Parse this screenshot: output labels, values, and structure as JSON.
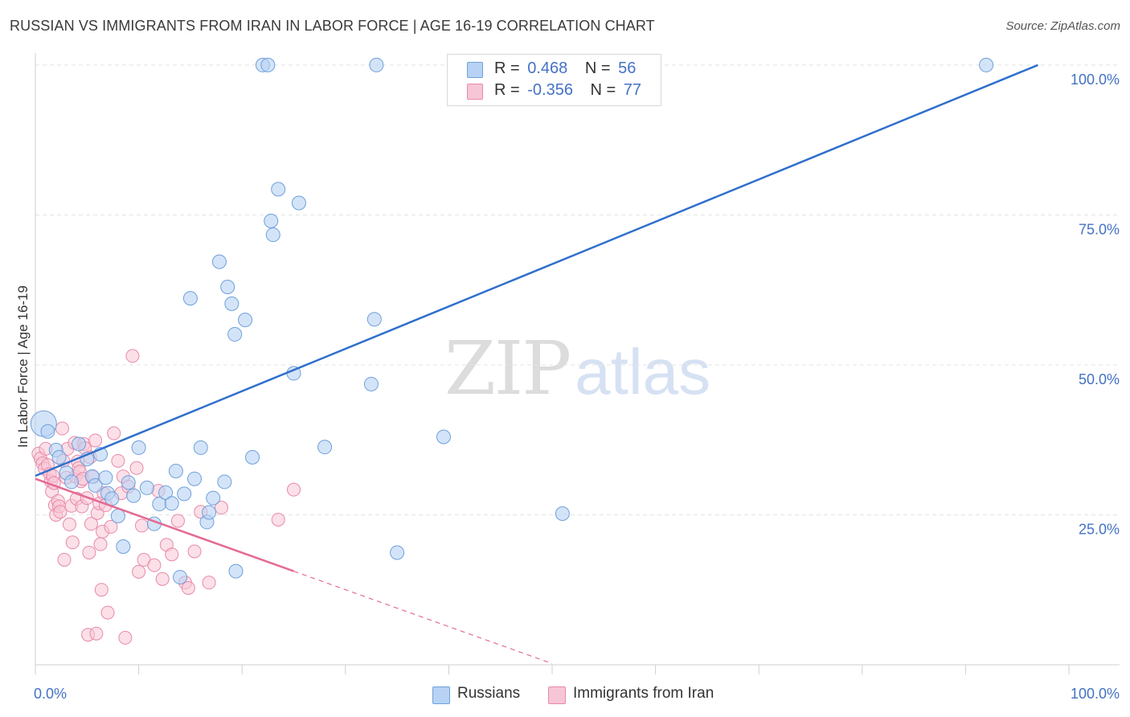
{
  "title": "RUSSIAN VS IMMIGRANTS FROM IRAN IN LABOR FORCE | AGE 16-19 CORRELATION CHART",
  "source": "Source: ZipAtlas.com",
  "watermark": {
    "zip": "ZIP",
    "atlas": "atlas"
  },
  "legend": {
    "russians": {
      "r_label": "R =",
      "r_value": "0.468",
      "n_label": "N =",
      "n_value": "56"
    },
    "iran": {
      "r_label": "R =",
      "r_value": "-0.356",
      "n_label": "N =",
      "n_value": "77"
    }
  },
  "bottom_legend": {
    "russians": "Russians",
    "iran": "Immigrants from Iran"
  },
  "colors": {
    "russians_fill": "#b7d2f4",
    "russians_stroke": "#6fa0db",
    "russians_line": "#2f6fcc",
    "iran_fill": "#f7c6d6",
    "iran_stroke": "#e889a8",
    "iran_line": "#e46b94",
    "axis_label": "#4472c4",
    "grid": "#e4e4e4"
  },
  "chart_data": {
    "type": "scatter",
    "title": "RUSSIAN VS IMMIGRANTS FROM IRAN IN LABOR FORCE | AGE 16-19 CORRELATION CHART",
    "xlabel": "",
    "ylabel": "In Labor Force | Age 16-19",
    "xlim": [
      0,
      100
    ],
    "ylim": [
      0,
      102
    ],
    "x_tick_labels": [
      "0.0%",
      "100.0%"
    ],
    "y_ticks": [
      25,
      50,
      75,
      100
    ],
    "y_tick_labels": [
      "25.0%",
      "50.0%",
      "75.0%",
      "100.0%"
    ],
    "grid": true,
    "series": [
      {
        "name": "Russians",
        "points": [
          [
            0.8,
            40.2
          ],
          [
            1.2,
            38.9
          ],
          [
            2.0,
            35.8
          ],
          [
            2.3,
            34.6
          ],
          [
            3.0,
            32.0
          ],
          [
            3.5,
            30.5
          ],
          [
            4.2,
            36.8
          ],
          [
            5.0,
            34.3
          ],
          [
            5.5,
            31.4
          ],
          [
            5.8,
            29.9
          ],
          [
            6.3,
            35.1
          ],
          [
            6.8,
            31.2
          ],
          [
            7.0,
            28.6
          ],
          [
            7.4,
            27.7
          ],
          [
            8.0,
            24.8
          ],
          [
            8.5,
            19.7
          ],
          [
            9.0,
            30.4
          ],
          [
            9.5,
            28.2
          ],
          [
            10.0,
            36.2
          ],
          [
            10.8,
            29.5
          ],
          [
            11.5,
            23.5
          ],
          [
            12.0,
            26.8
          ],
          [
            12.6,
            28.7
          ],
          [
            13.2,
            26.9
          ],
          [
            13.6,
            32.3
          ],
          [
            14.0,
            14.6
          ],
          [
            14.4,
            28.5
          ],
          [
            15.0,
            61.1
          ],
          [
            15.4,
            31.0
          ],
          [
            16.0,
            36.2
          ],
          [
            16.6,
            23.8
          ],
          [
            16.8,
            25.4
          ],
          [
            17.2,
            27.8
          ],
          [
            17.8,
            67.2
          ],
          [
            18.3,
            30.5
          ],
          [
            18.6,
            63.0
          ],
          [
            19.0,
            60.2
          ],
          [
            19.3,
            55.1
          ],
          [
            19.4,
            15.6
          ],
          [
            20.3,
            57.5
          ],
          [
            21.0,
            34.6
          ],
          [
            22.0,
            100.0
          ],
          [
            22.5,
            100.0
          ],
          [
            22.8,
            74.0
          ],
          [
            23.0,
            71.7
          ],
          [
            23.5,
            79.3
          ],
          [
            25.0,
            48.6
          ],
          [
            25.5,
            77.0
          ],
          [
            28.0,
            36.3
          ],
          [
            32.5,
            46.8
          ],
          [
            32.8,
            57.6
          ],
          [
            33.0,
            100.0
          ],
          [
            35.0,
            18.7
          ],
          [
            39.5,
            38.0
          ],
          [
            51.0,
            25.2
          ],
          [
            92.0,
            100.0
          ]
        ],
        "trend": {
          "x": [
            0,
            97
          ],
          "y": [
            31.5,
            100.0
          ],
          "style": "solid"
        }
      },
      {
        "name": "Immigrants from Iran",
        "points": [
          [
            0.3,
            35.2
          ],
          [
            0.5,
            34.4
          ],
          [
            0.7,
            33.6
          ],
          [
            0.9,
            32.7
          ],
          [
            1.0,
            36.0
          ],
          [
            1.2,
            33.3
          ],
          [
            1.4,
            31.8
          ],
          [
            1.5,
            30.6
          ],
          [
            1.6,
            28.9
          ],
          [
            1.7,
            31.5
          ],
          [
            1.8,
            30.3
          ],
          [
            1.9,
            26.6
          ],
          [
            2.0,
            25.0
          ],
          [
            2.2,
            27.3
          ],
          [
            2.3,
            26.4
          ],
          [
            2.4,
            25.5
          ],
          [
            2.6,
            39.4
          ],
          [
            2.7,
            34.0
          ],
          [
            2.8,
            17.5
          ],
          [
            3.0,
            31.2
          ],
          [
            3.1,
            36.0
          ],
          [
            3.3,
            23.4
          ],
          [
            3.5,
            26.5
          ],
          [
            3.6,
            20.4
          ],
          [
            3.8,
            37.0
          ],
          [
            3.9,
            31.4
          ],
          [
            4.0,
            27.7
          ],
          [
            4.1,
            33.9
          ],
          [
            4.2,
            32.8
          ],
          [
            4.3,
            32.2
          ],
          [
            4.4,
            30.6
          ],
          [
            4.5,
            26.4
          ],
          [
            4.6,
            31.0
          ],
          [
            4.7,
            36.8
          ],
          [
            4.8,
            36.1
          ],
          [
            5.0,
            27.8
          ],
          [
            5.1,
            5.0
          ],
          [
            5.2,
            18.7
          ],
          [
            5.3,
            34.6
          ],
          [
            5.4,
            23.5
          ],
          [
            5.6,
            31.3
          ],
          [
            5.8,
            37.4
          ],
          [
            5.9,
            5.2
          ],
          [
            6.0,
            25.3
          ],
          [
            6.2,
            26.9
          ],
          [
            6.3,
            20.1
          ],
          [
            6.4,
            12.5
          ],
          [
            6.5,
            22.2
          ],
          [
            6.6,
            28.6
          ],
          [
            6.8,
            26.6
          ],
          [
            7.0,
            8.7
          ],
          [
            7.3,
            23.0
          ],
          [
            7.6,
            38.6
          ],
          [
            8.0,
            34.0
          ],
          [
            8.3,
            28.6
          ],
          [
            8.5,
            31.4
          ],
          [
            8.7,
            4.5
          ],
          [
            9.0,
            29.7
          ],
          [
            9.4,
            51.5
          ],
          [
            9.8,
            32.8
          ],
          [
            10.0,
            15.5
          ],
          [
            10.3,
            23.2
          ],
          [
            10.5,
            17.5
          ],
          [
            11.5,
            16.6
          ],
          [
            11.9,
            29.0
          ],
          [
            12.3,
            14.3
          ],
          [
            12.7,
            20.0
          ],
          [
            13.2,
            18.4
          ],
          [
            13.8,
            24.0
          ],
          [
            14.5,
            13.7
          ],
          [
            14.8,
            12.8
          ],
          [
            15.4,
            18.9
          ],
          [
            16.0,
            25.5
          ],
          [
            16.8,
            13.7
          ],
          [
            18.0,
            26.2
          ],
          [
            23.5,
            24.2
          ],
          [
            25.0,
            29.2
          ]
        ],
        "trend": {
          "x": [
            0,
            25
          ],
          "y": [
            31.0,
            15.6
          ],
          "style": "solid"
        },
        "trend_extension": {
          "x": [
            25,
            50
          ],
          "y": [
            15.6,
            0.2
          ],
          "style": "dashed"
        }
      }
    ]
  }
}
